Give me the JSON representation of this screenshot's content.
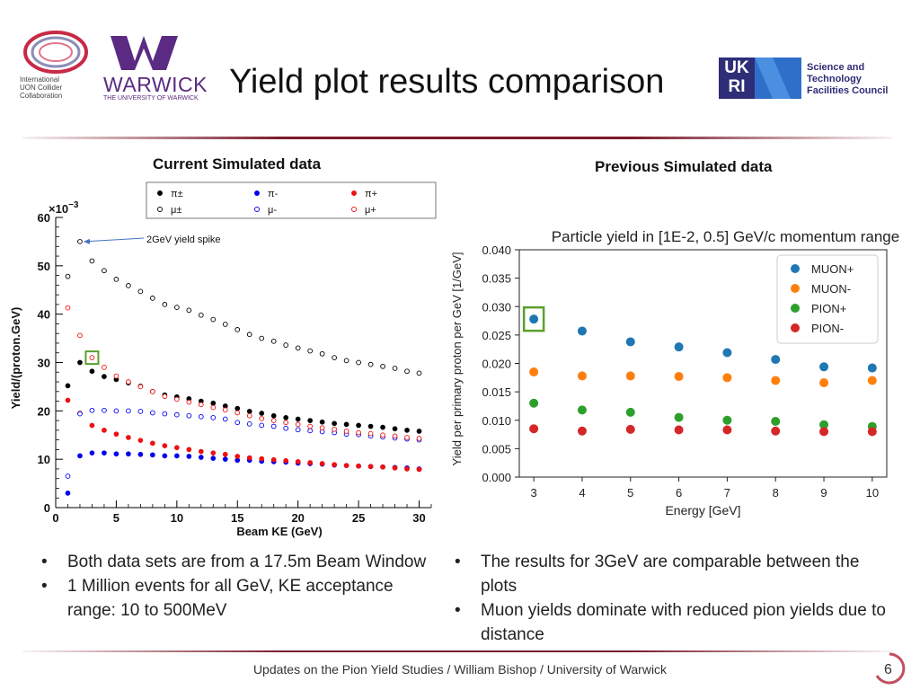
{
  "header": {
    "title": "Yield plot results comparison",
    "muon_logo_lines": [
      "International",
      "UON Collider",
      "Collaboration"
    ],
    "warwick_name": "WARWICK",
    "warwick_sub": "THE UNIVERSITY OF WARWICK",
    "ukri": [
      "UK",
      "RI"
    ],
    "stfc_lines": [
      "Science and",
      "Technology",
      "Facilities Council"
    ]
  },
  "left_heading": "Current Simulated data",
  "right_heading": "Previous Simulated data",
  "footer": {
    "text": "Updates on the Pion Yield Studies / William Bishop / University of Warwick",
    "page": "6"
  },
  "bullets_left": [
    "Both data sets are from a 17.5m Beam Window",
    "1 Million events for all GeV, KE acceptance range: 10 to 500MeV"
  ],
  "bullets_right": [
    "The results for 3GeV are comparable between the plots",
    "Muon yields dominate with reduced pion yields due to distance"
  ],
  "colors": {
    "black": "#000000",
    "blue": "#0000ee",
    "red": "#ee1111",
    "muon_plus": "#1f77b4",
    "muon_minus": "#ff7f0e",
    "pion_plus": "#2ca02c",
    "pion_minus": "#d62728",
    "highlight": "#5aa02c",
    "accent": "#7a1a2a"
  },
  "chart_data": [
    {
      "type": "scatter",
      "xlabel": "Beam KE (GeV)",
      "ylabel": "Yield/(proton.GeV)",
      "y_multiplier": "×10",
      "y_exponent": "−3",
      "xlim": [
        0,
        31
      ],
      "ylim": [
        0,
        60
      ],
      "xticks": [
        "0",
        "5",
        "10",
        "15",
        "20",
        "25",
        "30"
      ],
      "yticks": [
        "0",
        "10",
        "20",
        "30",
        "40",
        "50",
        "60"
      ],
      "annotation": "2GeV yield spike",
      "highlight_x": 3,
      "legend_placement": "top",
      "legend": [
        {
          "label": "π±",
          "color": "#000000",
          "filled": true
        },
        {
          "label": "π-",
          "color": "#0000ee",
          "filled": true
        },
        {
          "label": "π+",
          "color": "#ee1111",
          "filled": true
        },
        {
          "label": "μ±",
          "color": "#000000",
          "filled": false
        },
        {
          "label": "μ-",
          "color": "#0000ee",
          "filled": false
        },
        {
          "label": "μ+",
          "color": "#ee1111",
          "filled": false
        }
      ],
      "x": [
        1,
        2,
        3,
        4,
        5,
        6,
        7,
        8,
        9,
        10,
        11,
        12,
        13,
        14,
        15,
        16,
        17,
        18,
        19,
        20,
        21,
        22,
        23,
        24,
        25,
        26,
        27,
        28,
        29,
        30
      ],
      "series": [
        {
          "legend": "π±",
          "color": "#000000",
          "filled": true,
          "values": [
            25.2,
            30.0,
            28.2,
            27.1,
            26.5,
            25.8,
            25.1,
            24.0,
            23.3,
            22.9,
            22.5,
            22.0,
            21.6,
            21.0,
            20.5,
            19.9,
            19.5,
            19.0,
            18.6,
            18.3,
            18.0,
            17.7,
            17.4,
            17.2,
            17.0,
            16.8,
            16.6,
            16.3,
            16.0,
            15.8
          ]
        },
        {
          "legend": "π-",
          "color": "#0000ee",
          "filled": true,
          "values": [
            3.0,
            10.7,
            11.3,
            11.3,
            11.1,
            11.1,
            11.0,
            10.9,
            10.7,
            10.7,
            10.6,
            10.4,
            10.2,
            10.0,
            9.8,
            9.8,
            9.6,
            9.5,
            9.4,
            9.2,
            9.1,
            9.0,
            8.8,
            8.7,
            8.6,
            8.5,
            8.4,
            8.3,
            8.2,
            8.0
          ]
        },
        {
          "legend": "π+",
          "color": "#ee1111",
          "filled": true,
          "values": [
            22.2,
            19.5,
            17.0,
            16.0,
            15.2,
            14.5,
            13.9,
            13.3,
            12.8,
            12.4,
            12.0,
            11.6,
            11.3,
            11.0,
            10.6,
            10.3,
            10.1,
            9.9,
            9.7,
            9.5,
            9.3,
            9.1,
            8.9,
            8.7,
            8.6,
            8.5,
            8.4,
            8.2,
            8.0,
            7.9
          ]
        },
        {
          "legend": "μ±",
          "color": "#000000",
          "filled": false,
          "values": [
            47.8,
            55.0,
            51.0,
            49.0,
            47.2,
            45.9,
            44.7,
            43.3,
            42.0,
            41.4,
            40.8,
            39.8,
            38.9,
            37.9,
            36.8,
            35.8,
            35.0,
            34.4,
            33.6,
            33.0,
            32.4,
            31.8,
            31.0,
            30.4,
            30.0,
            29.6,
            29.2,
            28.8,
            28.2,
            27.8
          ]
        },
        {
          "legend": "μ-",
          "color": "#0000ee",
          "filled": false,
          "values": [
            6.5,
            19.4,
            20.1,
            20.1,
            20.0,
            20.0,
            19.9,
            19.6,
            19.4,
            19.2,
            19.0,
            18.8,
            18.6,
            18.3,
            17.6,
            17.3,
            17.0,
            16.8,
            16.4,
            16.1,
            15.9,
            15.7,
            15.5,
            15.2,
            15.1,
            14.8,
            14.6,
            14.4,
            14.2,
            14.0
          ]
        },
        {
          "legend": "μ+",
          "color": "#ee1111",
          "filled": false,
          "values": [
            41.3,
            35.6,
            31.0,
            29.0,
            27.2,
            26.0,
            25.0,
            24.0,
            23.0,
            22.4,
            21.8,
            21.3,
            20.7,
            20.2,
            19.6,
            19.0,
            18.4,
            18.0,
            17.6,
            17.2,
            16.8,
            16.5,
            16.2,
            15.8,
            15.5,
            15.3,
            15.0,
            14.8,
            14.5,
            14.3
          ]
        }
      ]
    },
    {
      "type": "scatter",
      "title": "Particle yield in [1E-2, 0.5] GeV/c momentum range",
      "xlabel": "Energy [GeV]",
      "ylabel": "Yield per primary proton per GeV [1/GeV]",
      "xlim": [
        2.7,
        10.3
      ],
      "ylim": [
        0.0,
        0.04
      ],
      "xticks": [
        "3",
        "4",
        "5",
        "6",
        "7",
        "8",
        "9",
        "10"
      ],
      "yticks": [
        "0.000",
        "0.005",
        "0.010",
        "0.015",
        "0.020",
        "0.025",
        "0.030",
        "0.035",
        "0.040"
      ],
      "grid": false,
      "legend_placement": "top-right",
      "highlight_x": 3,
      "x": [
        3,
        4,
        5,
        6,
        7,
        8,
        9,
        10
      ],
      "series": [
        {
          "name": "MUON+",
          "color": "#1f77b4",
          "values": [
            0.0278,
            0.0257,
            0.0238,
            0.0229,
            0.0219,
            0.0207,
            0.0194,
            0.0192
          ]
        },
        {
          "name": "MUON-",
          "color": "#ff7f0e",
          "values": [
            0.0185,
            0.0178,
            0.0178,
            0.0177,
            0.0175,
            0.017,
            0.0166,
            0.017
          ]
        },
        {
          "name": "PION+",
          "color": "#2ca02c",
          "values": [
            0.013,
            0.0118,
            0.0114,
            0.0105,
            0.01,
            0.0098,
            0.0092,
            0.0089
          ]
        },
        {
          "name": "PION-",
          "color": "#d62728",
          "values": [
            0.0085,
            0.0081,
            0.0084,
            0.0083,
            0.0083,
            0.0081,
            0.008,
            0.008
          ]
        }
      ]
    }
  ]
}
